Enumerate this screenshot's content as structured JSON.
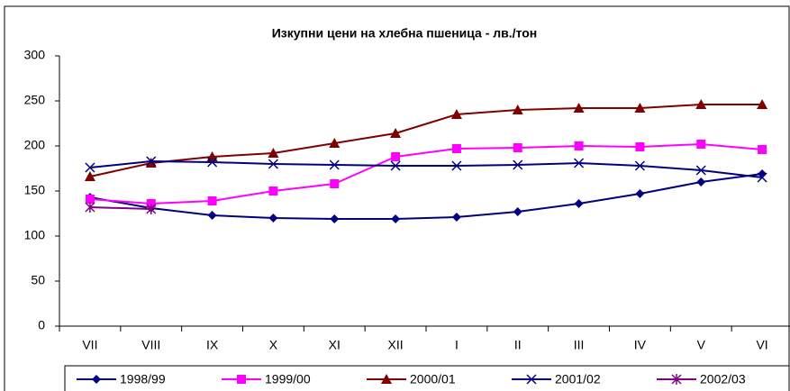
{
  "chart_data": {
    "type": "line",
    "title": "Изкупни цени на хлебна пшеница - лв./тон",
    "categories": [
      "VII",
      "VIII",
      "IX",
      "X",
      "XI",
      "XII",
      "I",
      "II",
      "III",
      "IV",
      "V",
      "VI"
    ],
    "ylim": [
      0,
      300
    ],
    "yticks": [
      0,
      50,
      100,
      150,
      200,
      250,
      300
    ],
    "legend": "bottom",
    "series": [
      {
        "name": "1998/99",
        "color": "#000080",
        "marker": "diamond",
        "values": [
          143,
          131,
          123,
          120,
          119,
          119,
          121,
          127,
          136,
          147,
          160,
          169
        ]
      },
      {
        "name": "1999/00",
        "color": "#ff00ff",
        "marker": "square",
        "values": [
          141,
          136,
          139,
          150,
          158,
          188,
          197,
          198,
          200,
          199,
          202,
          196
        ]
      },
      {
        "name": "2000/01",
        "color": "#800000",
        "marker": "triangle",
        "values": [
          166,
          181,
          188,
          192,
          203,
          214,
          235,
          240,
          242,
          242,
          246,
          246
        ]
      },
      {
        "name": "2001/02",
        "color": "#000080",
        "marker": "x",
        "values": [
          176,
          183,
          182,
          180,
          179,
          178,
          178,
          179,
          181,
          178,
          173,
          165
        ]
      },
      {
        "name": "2002/03",
        "color": "#800080",
        "marker": "star",
        "values": [
          132,
          130,
          null,
          null,
          null,
          null,
          null,
          null,
          null,
          null,
          null,
          null
        ]
      }
    ]
  }
}
